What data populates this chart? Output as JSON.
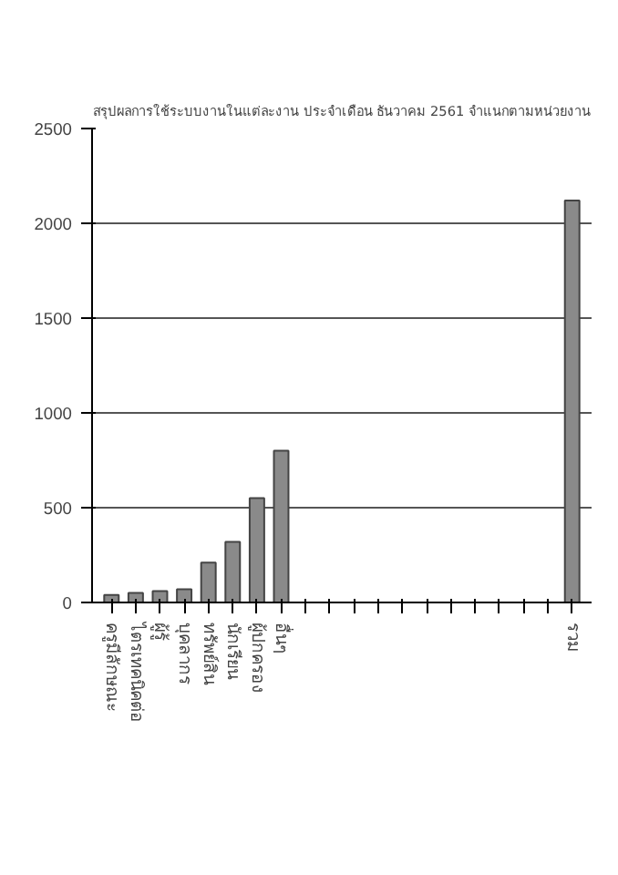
{
  "chart_data": {
    "type": "bar",
    "title": "สรุปผลการใช้ระบบงานในแต่ละงาน ประจำเดือน ธันวาคม 2561 จำแนกตามหน่วยงาน",
    "categories": [
      "ครูมีลักษณะ",
      "ไตรเทคนิคต่อ",
      "ผู้รู้",
      "บุคลากร",
      "ทรัพย์สิน",
      "นักเรียน",
      "ผู้ปกครอง",
      "อื่นๆ",
      null,
      null,
      null,
      null,
      null,
      null,
      null,
      null,
      null,
      null,
      null,
      "รวม"
    ],
    "values": [
      40,
      50,
      60,
      70,
      210,
      320,
      550,
      800,
      null,
      null,
      null,
      null,
      null,
      null,
      null,
      null,
      null,
      null,
      null,
      2120
    ],
    "color": "#8a8a8a",
    "ylim": [
      0,
      2500
    ],
    "yticks": [
      0,
      500,
      1000,
      1500,
      2000,
      2500
    ],
    "grid": "y"
  }
}
